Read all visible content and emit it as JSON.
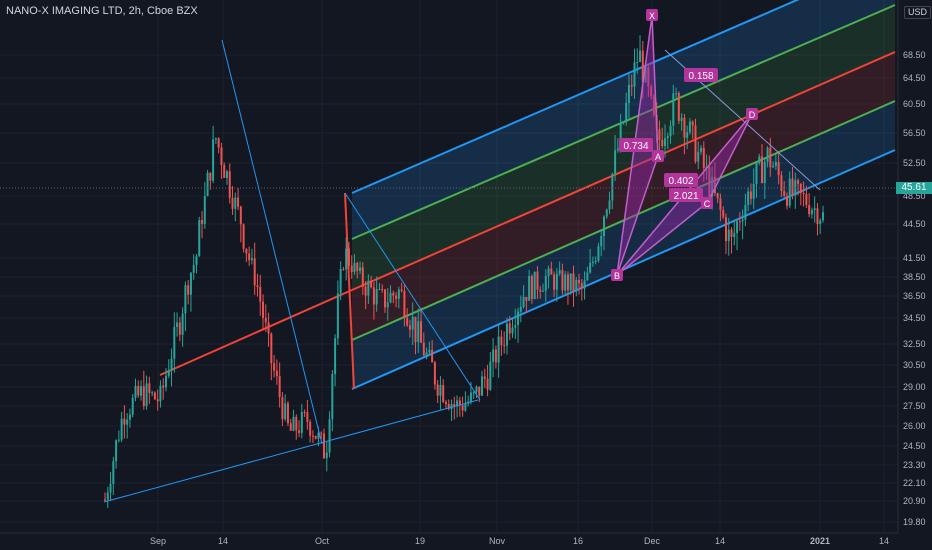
{
  "header": {
    "symbol_title": "NANO-X IMAGING LTD, 2h, Cboe BZX",
    "currency": "USD",
    "last_price": "45.61"
  },
  "colors": {
    "background": "#131722",
    "grid": "#1e222d",
    "up": "#26a69a",
    "down": "#ef5350",
    "channel_blue": "#2196f3",
    "channel_green": "#4caf50",
    "channel_red": "#f44336",
    "pattern_purple": "#9c27b0",
    "label_magenta": "#b5349b"
  },
  "chart_data": {
    "type": "candlestick",
    "title": "NANO-X IMAGING LTD, 2h, Cboe BZX",
    "y_ticks": [
      "68.50",
      "64.50",
      "60.50",
      "56.50",
      "52.50",
      "48.50",
      "44.50",
      "41.50",
      "38.50",
      "36.50",
      "34.50",
      "32.50",
      "30.50",
      "29.00",
      "27.50",
      "26.00",
      "24.50",
      "23.30",
      "22.10",
      "20.90",
      "19.80"
    ],
    "x_ticks": [
      "Sep",
      "14",
      "Oct",
      "19",
      "Nov",
      "16",
      "Dec",
      "14",
      "2021",
      "14"
    ],
    "ylim": [
      19.0,
      74.0
    ],
    "last_price": 45.61,
    "pattern_labels": [
      "X",
      "A",
      "B",
      "C",
      "D"
    ],
    "ratio_labels": [
      "0.158",
      "0.734",
      "0.402",
      "2.021"
    ],
    "price_path": [
      {
        "date": "Aug 25",
        "price": 21.0
      },
      {
        "date": "Aug 27",
        "price": 27.0
      },
      {
        "date": "Sep 1",
        "price": 28.5
      },
      {
        "date": "Sep 4",
        "price": 28.0
      },
      {
        "date": "Sep 8",
        "price": 34.0
      },
      {
        "date": "Sep 10",
        "price": 42.0
      },
      {
        "date": "Sep 14",
        "price": 56.0
      },
      {
        "date": "Sep 16",
        "price": 48.0
      },
      {
        "date": "Sep 18",
        "price": 40.0
      },
      {
        "date": "Sep 22",
        "price": 31.0
      },
      {
        "date": "Sep 25",
        "price": 25.5
      },
      {
        "date": "Sep 29",
        "price": 26.5
      },
      {
        "date": "Oct 1",
        "price": 24.0
      },
      {
        "date": "Oct 5",
        "price": 42.0
      },
      {
        "date": "Oct 7",
        "price": 38.0
      },
      {
        "date": "Oct 12",
        "price": 36.0
      },
      {
        "date": "Oct 16",
        "price": 37.0
      },
      {
        "date": "Oct 20",
        "price": 33.0
      },
      {
        "date": "Oct 26",
        "price": 29.5
      },
      {
        "date": "Oct 29",
        "price": 27.5
      },
      {
        "date": "Nov 2",
        "price": 28.0
      },
      {
        "date": "Nov 5",
        "price": 30.5
      },
      {
        "date": "Nov 9",
        "price": 34.5
      },
      {
        "date": "Nov 13",
        "price": 37.5
      },
      {
        "date": "Nov 18",
        "price": 38.5
      },
      {
        "date": "Nov 23",
        "price": 38.0
      },
      {
        "date": "Nov 25",
        "price": 37.0
      },
      {
        "date": "Nov 27",
        "price": 45.0
      },
      {
        "date": "Nov 30",
        "price": 56.0
      },
      {
        "date": "Dec 1",
        "price": 69.0
      },
      {
        "date": "Dec 2",
        "price": 55.0
      },
      {
        "date": "Dec 4",
        "price": 61.0
      },
      {
        "date": "Dec 7",
        "price": 55.0
      },
      {
        "date": "Dec 10",
        "price": 49.0
      },
      {
        "date": "Dec 14",
        "price": 42.5
      },
      {
        "date": "Dec 17",
        "price": 49.0
      },
      {
        "date": "Dec 21",
        "price": 53.5
      },
      {
        "date": "Dec 24",
        "price": 49.0
      },
      {
        "date": "Dec 28",
        "price": 48.0
      },
      {
        "date": "Dec 31",
        "price": 45.6
      }
    ]
  }
}
